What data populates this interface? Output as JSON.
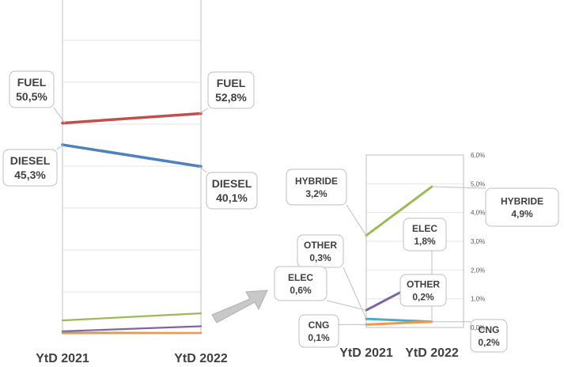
{
  "chart_data": [
    {
      "type": "line",
      "categories": [
        "YtD 2021",
        "YtD 2022"
      ],
      "ylim": [
        0,
        80
      ],
      "grid": true,
      "series": [
        {
          "name": "FUEL",
          "values": [
            50.5,
            52.8
          ],
          "labels": [
            "FUEL\n50,5%",
            "FUEL\n52,8%"
          ],
          "color": "#c0504d"
        },
        {
          "name": "DIESEL",
          "values": [
            45.3,
            40.1
          ],
          "labels": [
            "DIESEL\n45,3%",
            "DIESEL\n40,1%"
          ],
          "color": "#4f81bd"
        },
        {
          "name": "HYBRIDE",
          "values": [
            3.2,
            4.9
          ],
          "color": "#9bbb59"
        },
        {
          "name": "ELEC",
          "values": [
            0.6,
            1.8
          ],
          "color": "#8064a2"
        },
        {
          "name": "OTHER",
          "values": [
            0.3,
            0.2
          ],
          "color": "#4bacc6"
        },
        {
          "name": "CNG",
          "values": [
            0.1,
            0.2
          ],
          "color": "#f79646"
        }
      ]
    },
    {
      "type": "line",
      "categories": [
        "YtD 2021",
        "YtD 2022"
      ],
      "ylim": [
        0,
        6
      ],
      "yticks": [
        "0,0%",
        "1,0%",
        "2,0%",
        "3,0%",
        "4,0%",
        "5,0%",
        "6,0%"
      ],
      "grid": true,
      "series": [
        {
          "name": "HYBRIDE",
          "values": [
            3.2,
            4.9
          ],
          "labels": [
            "HYBRIDE\n3,2%",
            "HYBRIDE\n4,9%"
          ],
          "color": "#9bbb59"
        },
        {
          "name": "ELEC",
          "values": [
            0.6,
            1.8
          ],
          "labels": [
            "ELEC\n0,6%",
            "ELEC\n1,8%"
          ],
          "color": "#8064a2"
        },
        {
          "name": "OTHER",
          "values": [
            0.3,
            0.2
          ],
          "labels": [
            "OTHER\n0,3%",
            "OTHER\n0,2%"
          ],
          "color": "#4bacc6"
        },
        {
          "name": "CNG",
          "values": [
            0.1,
            0.2
          ],
          "labels": [
            "CNG\n0,1%",
            "CNG\n0,2%"
          ],
          "color": "#f79646"
        }
      ]
    }
  ]
}
